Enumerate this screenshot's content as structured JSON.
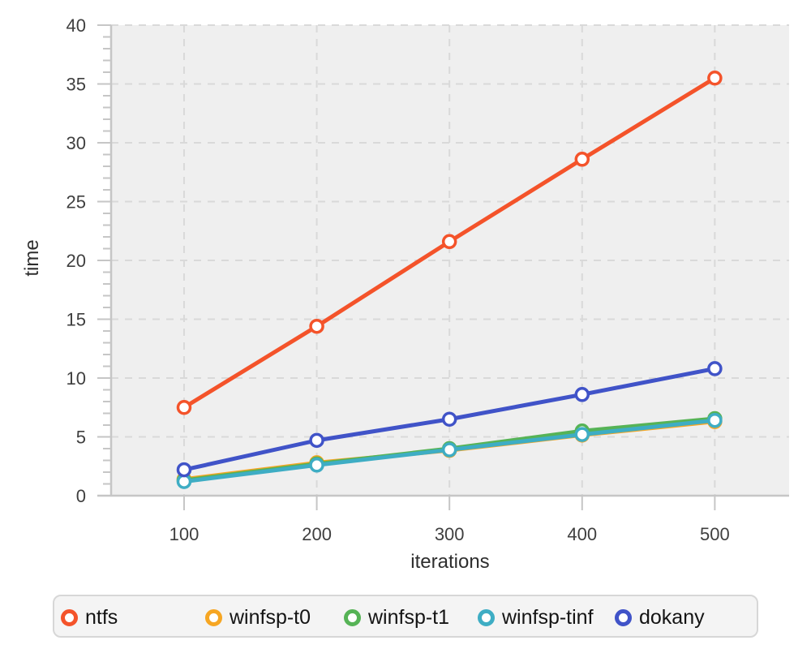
{
  "chart_data": {
    "type": "line",
    "title": "",
    "xlabel": "iterations",
    "ylabel": "time",
    "x": [
      100,
      200,
      300,
      400,
      500
    ],
    "series": [
      {
        "name": "ntfs",
        "color": "#f4532a",
        "values": [
          7.5,
          14.4,
          21.6,
          28.6,
          35.5
        ]
      },
      {
        "name": "winfsp-t0",
        "color": "#f6a623",
        "values": [
          1.4,
          2.8,
          3.85,
          5.15,
          6.3
        ]
      },
      {
        "name": "winfsp-t1",
        "color": "#56b356",
        "values": [
          1.3,
          2.7,
          4.0,
          5.5,
          6.55
        ]
      },
      {
        "name": "winfsp-tinf",
        "color": "#3eadc4",
        "values": [
          1.2,
          2.6,
          3.9,
          5.2,
          6.4
        ]
      },
      {
        "name": "dokany",
        "color": "#4053c8",
        "values": [
          2.2,
          4.7,
          6.5,
          8.6,
          10.8
        ]
      }
    ],
    "xticks": [
      100,
      200,
      300,
      400,
      500
    ],
    "yticks": [
      0,
      5,
      10,
      15,
      20,
      25,
      30,
      35,
      40
    ],
    "y_minor_step": 1,
    "xlim": [
      45,
      556
    ],
    "ylim": [
      0,
      40
    ],
    "grid": "dashed",
    "marker": "open-circle",
    "legend_position": "bottom"
  },
  "styles": {
    "plot_bg": "#efefef",
    "grid_color": "#d9d9d9",
    "axis_color": "#c6c6c6",
    "tick_label_color": "#3f3f3f",
    "axis_label_color": "#2e2e2e",
    "legend_bg": "#f4f4f4",
    "legend_border": "#d7d7d7",
    "legend_text_color": "#141414"
  }
}
